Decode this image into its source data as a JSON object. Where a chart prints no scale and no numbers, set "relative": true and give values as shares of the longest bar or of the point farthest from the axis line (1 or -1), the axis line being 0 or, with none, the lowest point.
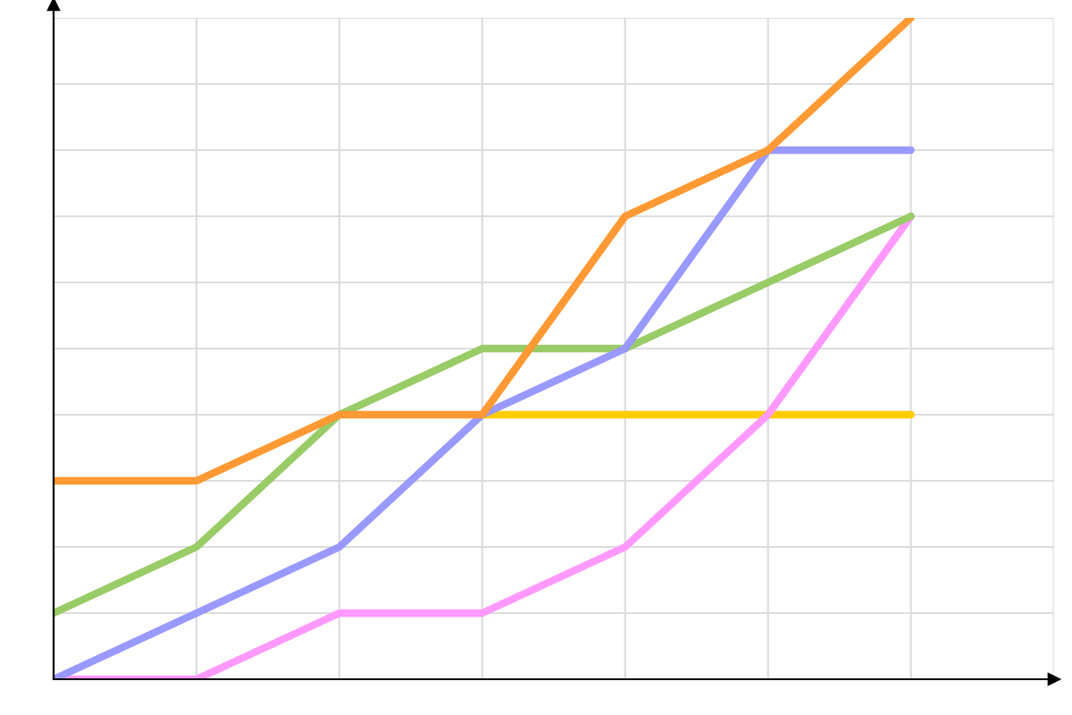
{
  "chart_data": {
    "type": "line",
    "relative": true,
    "grid": true,
    "marker": "none",
    "line_style": "solid",
    "categories": [
      null,
      null,
      null,
      null,
      null,
      null,
      null
    ],
    "series": [
      {
        "color": "#ffcc00",
        "values": [
          null,
          null,
          null,
          0.4,
          0.4,
          0.4,
          0.4
        ]
      },
      {
        "color": "#ff99ff",
        "values": [
          0,
          0,
          0.1,
          0.1,
          0.2,
          0.4,
          0.7
        ]
      },
      {
        "color": "#99cc66",
        "values": [
          0.1,
          0.2,
          0.4,
          0.5,
          0.5,
          0.6,
          0.7
        ]
      },
      {
        "color": "#9999ff",
        "values": [
          0,
          0.1,
          0.2,
          0.4,
          0.5,
          0.8,
          0.8
        ]
      },
      {
        "color": "#ff9933",
        "values": [
          0.3,
          0.3,
          0.4,
          0.4,
          0.7,
          0.8,
          1
        ]
      }
    ]
  }
}
